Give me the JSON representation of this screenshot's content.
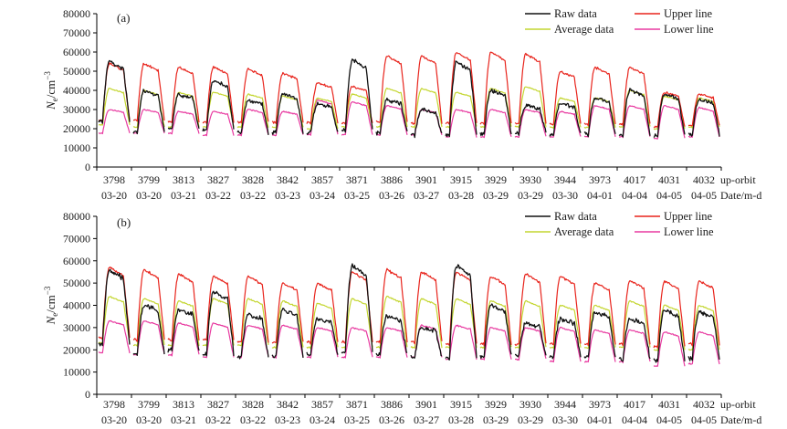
{
  "panels": [
    {
      "id": "a",
      "label": "(a)"
    },
    {
      "id": "b",
      "label": "(b)"
    }
  ],
  "ylabel": {
    "main": "N",
    "sub": "e",
    "unit": "/cm",
    "sup": "−3"
  },
  "row_labels": {
    "orbit": "up-orbit",
    "date": "Date/m-d"
  },
  "legend": [
    {
      "key": "raw",
      "label": "Raw data",
      "color": "#111111"
    },
    {
      "key": "avg",
      "label": "Average data",
      "color": "#c4d630"
    },
    {
      "key": "upper",
      "label": "Upper line",
      "color": "#e8241c"
    },
    {
      "key": "lower",
      "label": "Lower line",
      "color": "#e83aa0"
    }
  ],
  "chart_data": [
    {
      "type": "line",
      "title": "(a)",
      "ylabel": "Ne/cm⁻³",
      "ylim": [
        0,
        80000
      ],
      "yticks": [
        0,
        10000,
        20000,
        30000,
        40000,
        50000,
        60000,
        70000,
        80000
      ],
      "orbits": [
        "3798",
        "3799",
        "3813",
        "3827",
        "3828",
        "3842",
        "3857",
        "3871",
        "3886",
        "3901",
        "3915",
        "3929",
        "3930",
        "3944",
        "3973",
        "4017",
        "4031",
        "4032"
      ],
      "dates": [
        "03-20",
        "03-20",
        "03-21",
        "03-22",
        "03-22",
        "03-23",
        "03-24",
        "03-25",
        "03-26",
        "03-27",
        "03-28",
        "03-29",
        "03-29",
        "03-30",
        "04-01",
        "04-04",
        "04-05",
        "04-05"
      ],
      "series": [
        {
          "name": "Raw data",
          "day_peak": [
            55000,
            40000,
            38000,
            45000,
            35000,
            38000,
            33000,
            56000,
            35000,
            30000,
            55000,
            40000,
            32000,
            33000,
            36000,
            40000,
            38000,
            35000
          ],
          "night_min": [
            22000,
            17000,
            19000,
            18000,
            17000,
            17000,
            17000,
            17000,
            17000,
            16000,
            15000,
            16000,
            17000,
            16000,
            16000,
            15000,
            15000,
            16000
          ]
        },
        {
          "name": "Average data",
          "day_peak": [
            41000,
            40000,
            39000,
            39000,
            38000,
            37000,
            36000,
            38000,
            41000,
            41000,
            39000,
            41000,
            42000,
            36000,
            36000,
            40000,
            37000,
            36000
          ],
          "night_min": [
            21000,
            20000,
            20000,
            20000,
            20000,
            20000,
            19000,
            20000,
            20000,
            20000,
            20000,
            20000,
            20000,
            20000,
            20000,
            20000,
            19000,
            20000
          ]
        },
        {
          "name": "Upper line",
          "day_peak": [
            54000,
            54000,
            52000,
            52000,
            51000,
            49000,
            44000,
            42000,
            58000,
            58000,
            60000,
            60000,
            59000,
            50000,
            52000,
            52000,
            39000,
            38000
          ],
          "night_min": [
            23000,
            23000,
            22000,
            22000,
            22000,
            22000,
            22000,
            22000,
            22000,
            21000,
            21000,
            21000,
            21000,
            21000,
            21000,
            21000,
            20000,
            21000
          ]
        },
        {
          "name": "Lower line",
          "day_peak": [
            30000,
            30000,
            29000,
            29000,
            30000,
            29000,
            35000,
            34000,
            32000,
            30000,
            30000,
            30000,
            30000,
            29000,
            32000,
            32000,
            32000,
            31000
          ],
          "night_min": [
            17000,
            17000,
            17000,
            16000,
            16000,
            16000,
            16000,
            16000,
            16000,
            16000,
            15000,
            15000,
            15000,
            15000,
            15000,
            15000,
            14000,
            15000
          ]
        }
      ]
    },
    {
      "type": "line",
      "title": "(b)",
      "ylabel": "Ne/cm⁻³",
      "ylim": [
        0,
        80000
      ],
      "yticks": [
        0,
        10000,
        20000,
        30000,
        40000,
        50000,
        60000,
        70000,
        80000
      ],
      "orbits": [
        "3798",
        "3799",
        "3813",
        "3827",
        "3828",
        "3842",
        "3857",
        "3871",
        "3886",
        "3901",
        "3915",
        "3929",
        "3930",
        "3944",
        "3973",
        "4017",
        "4031",
        "4032"
      ],
      "dates": [
        "03-20",
        "03-20",
        "03-21",
        "03-22",
        "03-22",
        "03-23",
        "03-24",
        "03-25",
        "03-26",
        "03-27",
        "03-28",
        "03-29",
        "03-29",
        "03-30",
        "04-01",
        "04-04",
        "04-05",
        "04-05"
      ],
      "series": [
        {
          "name": "Raw data",
          "day_peak": [
            56000,
            40000,
            38000,
            46000,
            36000,
            38000,
            34000,
            58000,
            35000,
            30000,
            58000,
            40000,
            32000,
            34000,
            37000,
            34000,
            38000,
            37000
          ],
          "night_min": [
            21000,
            17000,
            19000,
            17000,
            16000,
            16000,
            17000,
            17000,
            17000,
            16000,
            14000,
            16000,
            17000,
            16000,
            16000,
            15000,
            14000,
            15000
          ]
        },
        {
          "name": "Average data",
          "day_peak": [
            44000,
            43000,
            42000,
            43000,
            43000,
            42000,
            41000,
            43000,
            44000,
            43000,
            43000,
            42000,
            42000,
            40000,
            40000,
            42000,
            40000,
            40000
          ],
          "night_min": [
            22000,
            21000,
            21000,
            21000,
            21000,
            20000,
            20000,
            20000,
            20000,
            20000,
            20000,
            20000,
            20000,
            20000,
            20000,
            20000,
            19000,
            19000
          ]
        },
        {
          "name": "Upper line",
          "day_peak": [
            57000,
            56000,
            54000,
            53000,
            53000,
            50000,
            50000,
            55000,
            56000,
            55000,
            55000,
            53000,
            54000,
            53000,
            50000,
            51000,
            51000,
            51000
          ],
          "night_min": [
            24000,
            23000,
            23000,
            23000,
            22000,
            22000,
            22000,
            22000,
            22000,
            22000,
            21000,
            21000,
            21000,
            21000,
            21000,
            21000,
            20000,
            21000
          ]
        },
        {
          "name": "Lower line",
          "day_peak": [
            33000,
            33000,
            32000,
            32000,
            31000,
            31000,
            30000,
            30000,
            30000,
            31000,
            31000,
            30000,
            30000,
            30000,
            29000,
            29000,
            28000,
            28000
          ],
          "night_min": [
            18000,
            17000,
            17000,
            16000,
            16000,
            16000,
            16000,
            16000,
            16000,
            16000,
            15000,
            15000,
            15000,
            14000,
            14000,
            14000,
            12000,
            13000
          ]
        }
      ]
    }
  ]
}
